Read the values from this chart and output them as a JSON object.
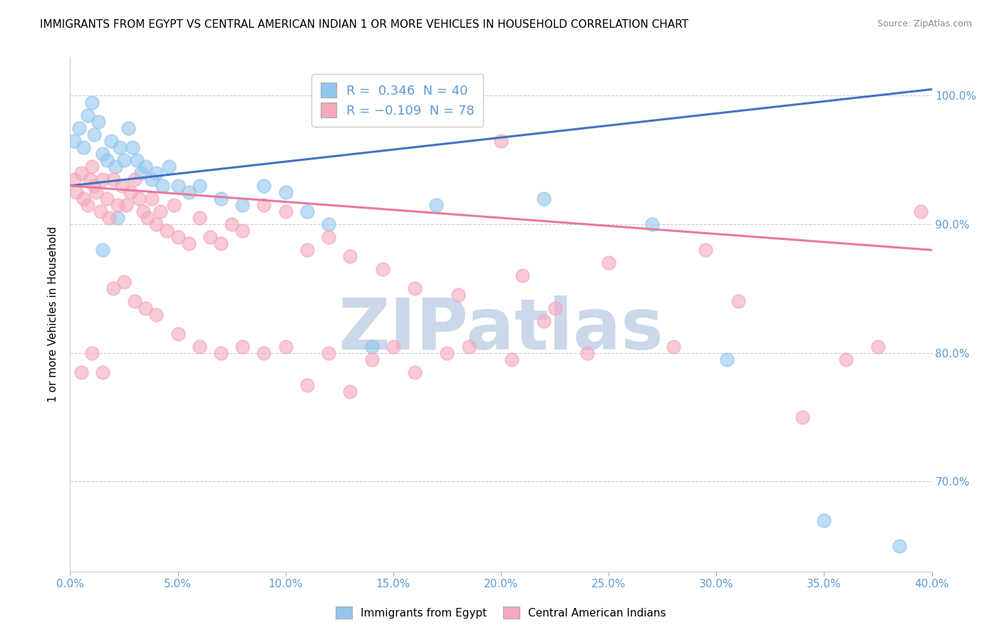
{
  "title": "IMMIGRANTS FROM EGYPT VS CENTRAL AMERICAN INDIAN 1 OR MORE VEHICLES IN HOUSEHOLD CORRELATION CHART",
  "source": "Source: ZipAtlas.com",
  "ylabel": "1 or more Vehicles in Household",
  "xlim": [
    0.0,
    40.0
  ],
  "ylim": [
    63.0,
    103.0
  ],
  "yticks": [
    70.0,
    80.0,
    90.0,
    100.0
  ],
  "xticks": [
    0.0,
    5.0,
    10.0,
    15.0,
    20.0,
    25.0,
    30.0,
    35.0,
    40.0
  ],
  "blue_R": 0.346,
  "blue_N": 40,
  "pink_R": -0.109,
  "pink_N": 78,
  "blue_scatter_x": [
    0.2,
    0.4,
    0.6,
    0.8,
    1.0,
    1.1,
    1.3,
    1.5,
    1.7,
    1.9,
    2.1,
    2.3,
    2.5,
    2.7,
    2.9,
    3.1,
    3.3,
    3.5,
    3.8,
    4.0,
    4.3,
    4.6,
    5.0,
    5.5,
    6.0,
    7.0,
    8.0,
    9.0,
    10.0,
    11.0,
    12.0,
    14.0,
    17.0,
    22.0,
    27.0,
    30.5,
    35.0,
    38.5,
    1.5,
    2.2
  ],
  "blue_scatter_y": [
    96.5,
    97.5,
    96.0,
    98.5,
    99.5,
    97.0,
    98.0,
    95.5,
    95.0,
    96.5,
    94.5,
    96.0,
    95.0,
    97.5,
    96.0,
    95.0,
    94.0,
    94.5,
    93.5,
    94.0,
    93.0,
    94.5,
    93.0,
    92.5,
    93.0,
    92.0,
    91.5,
    93.0,
    92.5,
    91.0,
    90.0,
    80.5,
    91.5,
    92.0,
    90.0,
    79.5,
    67.0,
    65.0,
    88.0,
    90.5
  ],
  "pink_scatter_x": [
    0.2,
    0.3,
    0.5,
    0.6,
    0.8,
    0.9,
    1.0,
    1.1,
    1.2,
    1.4,
    1.5,
    1.7,
    1.8,
    2.0,
    2.2,
    2.4,
    2.6,
    2.8,
    3.0,
    3.2,
    3.4,
    3.6,
    3.8,
    4.0,
    4.2,
    4.5,
    4.8,
    5.0,
    5.5,
    6.0,
    6.5,
    7.0,
    7.5,
    8.0,
    9.0,
    10.0,
    11.0,
    12.0,
    13.0,
    14.5,
    16.0,
    18.0,
    20.0,
    21.0,
    22.5,
    25.0,
    28.0,
    29.5,
    31.0,
    34.0,
    36.0,
    37.5,
    39.5,
    0.5,
    1.0,
    1.5,
    2.0,
    2.5,
    3.0,
    3.5,
    4.0,
    5.0,
    6.0,
    7.0,
    8.0,
    9.0,
    10.0,
    11.0,
    12.0,
    13.0,
    14.0,
    15.0,
    16.0,
    17.5,
    18.5,
    20.5,
    22.0,
    24.0
  ],
  "pink_scatter_y": [
    93.5,
    92.5,
    94.0,
    92.0,
    91.5,
    93.5,
    94.5,
    93.0,
    92.5,
    91.0,
    93.5,
    92.0,
    90.5,
    93.5,
    91.5,
    93.0,
    91.5,
    92.5,
    93.5,
    92.0,
    91.0,
    90.5,
    92.0,
    90.0,
    91.0,
    89.5,
    91.5,
    89.0,
    88.5,
    90.5,
    89.0,
    88.5,
    90.0,
    89.5,
    91.5,
    91.0,
    88.0,
    89.0,
    87.5,
    86.5,
    85.0,
    84.5,
    96.5,
    86.0,
    83.5,
    87.0,
    80.5,
    88.0,
    84.0,
    75.0,
    79.5,
    80.5,
    91.0,
    78.5,
    80.0,
    78.5,
    85.0,
    85.5,
    84.0,
    83.5,
    83.0,
    81.5,
    80.5,
    80.0,
    80.5,
    80.0,
    80.5,
    77.5,
    80.0,
    77.0,
    79.5,
    80.5,
    78.5,
    80.0,
    80.5,
    79.5,
    82.5,
    80.0
  ],
  "blue_color": "#93C6EE",
  "pink_color": "#F4A8BC",
  "blue_line_color": "#4472C4",
  "pink_line_color": "#E8799F",
  "watermark_text": "ZIPatlas",
  "watermark_color": "#CBD8EA",
  "bg_color": "#FFFFFF",
  "grid_color": "#CCCCCC",
  "tick_label_color": "#5B9BD5",
  "title_fontsize": 11,
  "legend_fontsize": 13,
  "axis_fontsize": 11
}
